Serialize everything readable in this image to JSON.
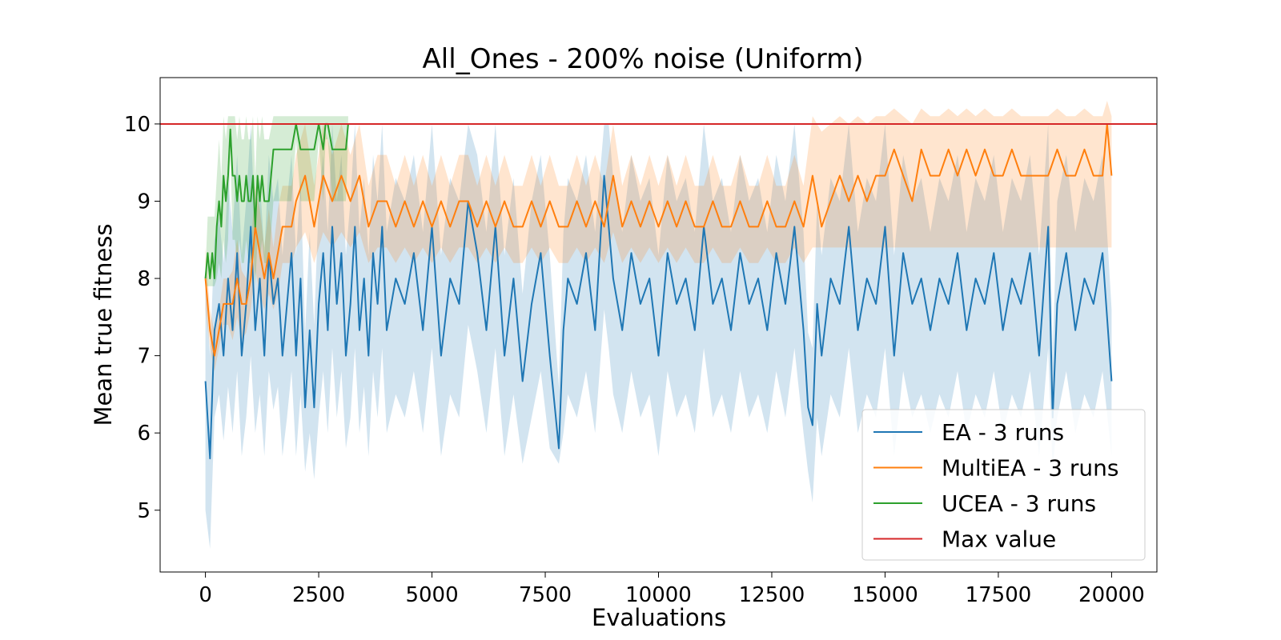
{
  "chart_data": {
    "type": "line",
    "title": "All_Ones - 200% noise (Uniform)",
    "xlabel": "Evaluations",
    "ylabel": "Mean true fitness",
    "xlim": [
      -1000,
      21000
    ],
    "ylim": [
      4.2,
      10.6
    ],
    "xticks": [
      0,
      2500,
      5000,
      7500,
      10000,
      12500,
      15000,
      17500,
      20000
    ],
    "yticks": [
      5,
      6,
      7,
      8,
      9,
      10
    ],
    "grid": false,
    "legend_position": "lower-right",
    "colors": {
      "ea": "#1f77b4",
      "multiea": "#ff7f0e",
      "ucea": "#2ca02c",
      "max": "#d62728"
    },
    "series": [
      {
        "name": "EA - 3 runs",
        "color": "#1f77b4",
        "x": [
          0,
          100,
          200,
          300,
          400,
          500,
          600,
          700,
          800,
          900,
          1000,
          1100,
          1200,
          1300,
          1400,
          1500,
          1600,
          1700,
          1800,
          1900,
          2000,
          2100,
          2200,
          2300,
          2400,
          2500,
          2600,
          2700,
          2800,
          2900,
          3000,
          3100,
          3200,
          3300,
          3400,
          3500,
          3600,
          3700,
          3800,
          3900,
          4000,
          4200,
          4400,
          4600,
          4800,
          5000,
          5200,
          5400,
          5600,
          5800,
          6000,
          6200,
          6400,
          6600,
          6800,
          7000,
          7200,
          7400,
          7600,
          7800,
          7900,
          8000,
          8200,
          8400,
          8600,
          8800,
          8900,
          9000,
          9200,
          9400,
          9600,
          9800,
          10000,
          10200,
          10400,
          10600,
          10800,
          11000,
          11200,
          11400,
          11600,
          11800,
          12000,
          12200,
          12400,
          12600,
          12800,
          13000,
          13200,
          13300,
          13400,
          13500,
          13600,
          13800,
          14000,
          14200,
          14400,
          14600,
          14800,
          15000,
          15200,
          15400,
          15600,
          15800,
          16000,
          16200,
          16400,
          16600,
          16800,
          17000,
          17200,
          17400,
          17600,
          17800,
          18000,
          18200,
          18400,
          18600,
          18700,
          18800,
          19000,
          19200,
          19400,
          19600,
          19800,
          20000
        ],
        "values": [
          6.67,
          5.67,
          7.33,
          7.67,
          7.0,
          8.0,
          7.33,
          8.33,
          7.0,
          7.67,
          8.67,
          7.33,
          8.0,
          7.0,
          8.33,
          7.67,
          8.0,
          7.0,
          7.67,
          8.33,
          7.0,
          8.0,
          6.33,
          7.33,
          6.33,
          7.67,
          8.33,
          7.33,
          8.67,
          7.67,
          8.33,
          7.0,
          7.67,
          8.67,
          7.33,
          8.0,
          7.0,
          8.33,
          7.67,
          8.67,
          7.33,
          8.0,
          7.67,
          8.33,
          7.33,
          8.67,
          7.0,
          8.0,
          7.67,
          9.0,
          8.33,
          7.33,
          8.67,
          7.0,
          8.0,
          6.67,
          7.67,
          8.33,
          7.0,
          5.8,
          7.33,
          8.0,
          7.67,
          8.33,
          7.33,
          9.33,
          8.67,
          8.0,
          7.33,
          8.33,
          7.67,
          8.0,
          7.0,
          8.33,
          7.67,
          8.0,
          7.33,
          8.67,
          7.67,
          8.0,
          7.33,
          8.33,
          7.67,
          8.0,
          7.33,
          8.33,
          7.67,
          8.67,
          7.33,
          6.33,
          6.1,
          7.67,
          7.0,
          8.0,
          7.67,
          8.67,
          7.33,
          8.0,
          7.67,
          8.67,
          7.0,
          8.33,
          7.67,
          8.0,
          7.33,
          8.0,
          7.67,
          8.33,
          7.33,
          8.0,
          7.67,
          8.33,
          7.33,
          8.0,
          7.67,
          8.33,
          7.0,
          8.67,
          6.2,
          7.67,
          8.33,
          7.33,
          8.0,
          7.67,
          8.33,
          6.67
        ],
        "band_lower": [
          5.0,
          4.5,
          6.2,
          6.5,
          5.9,
          6.6,
          6.0,
          6.8,
          5.7,
          6.2,
          7.0,
          6.0,
          6.5,
          5.7,
          6.8,
          6.3,
          6.6,
          5.7,
          6.2,
          6.8,
          5.7,
          6.5,
          5.5,
          6.0,
          5.4,
          6.2,
          6.8,
          6.0,
          7.1,
          6.2,
          6.8,
          5.8,
          6.2,
          7.1,
          6.0,
          6.6,
          5.7,
          6.8,
          6.2,
          7.1,
          6.0,
          6.5,
          6.2,
          6.8,
          6.0,
          7.1,
          5.7,
          6.5,
          6.2,
          7.4,
          6.8,
          6.0,
          7.1,
          5.7,
          6.5,
          5.6,
          6.2,
          6.8,
          5.8,
          5.6,
          6.0,
          6.5,
          6.2,
          6.8,
          6.0,
          7.6,
          7.1,
          6.5,
          6.0,
          6.8,
          6.2,
          6.5,
          5.7,
          6.8,
          6.2,
          6.5,
          6.0,
          7.1,
          6.2,
          6.5,
          6.0,
          6.8,
          6.2,
          6.5,
          6.0,
          6.8,
          6.2,
          7.1,
          6.0,
          5.5,
          5.1,
          6.2,
          5.7,
          6.5,
          6.2,
          7.1,
          6.0,
          6.5,
          6.2,
          7.1,
          5.7,
          6.8,
          6.2,
          6.5,
          6.0,
          6.5,
          6.2,
          6.8,
          6.0,
          6.5,
          6.2,
          6.8,
          6.0,
          6.5,
          6.2,
          6.8,
          5.7,
          7.1,
          5.5,
          6.2,
          6.8,
          6.0,
          6.5,
          6.2,
          6.8,
          5.7
        ],
        "band_upper": [
          8.0,
          7.0,
          8.5,
          8.8,
          8.2,
          9.3,
          8.6,
          9.6,
          8.3,
          9.0,
          10.0,
          8.6,
          9.3,
          8.3,
          9.6,
          9.0,
          9.3,
          8.3,
          9.0,
          9.6,
          8.3,
          9.3,
          7.3,
          8.6,
          7.4,
          9.0,
          9.6,
          8.6,
          10.0,
          9.0,
          9.6,
          8.3,
          9.0,
          10.0,
          8.6,
          9.3,
          8.3,
          9.6,
          9.0,
          10.0,
          8.6,
          9.3,
          9.0,
          9.6,
          8.6,
          10.0,
          8.3,
          9.3,
          9.0,
          10.0,
          9.6,
          8.6,
          10.0,
          8.3,
          9.3,
          7.8,
          9.0,
          9.6,
          8.3,
          6.6,
          8.6,
          9.3,
          9.0,
          9.6,
          8.6,
          10.0,
          10.0,
          9.3,
          8.6,
          9.6,
          9.0,
          9.3,
          8.3,
          9.6,
          9.0,
          9.3,
          8.6,
          10.0,
          9.0,
          9.3,
          8.6,
          9.6,
          9.0,
          9.3,
          8.6,
          9.6,
          9.0,
          10.0,
          8.6,
          7.3,
          7.1,
          9.0,
          8.3,
          9.3,
          9.0,
          10.0,
          8.6,
          9.3,
          9.0,
          10.0,
          8.3,
          9.6,
          9.0,
          9.3,
          8.6,
          9.3,
          9.0,
          9.6,
          8.6,
          9.3,
          9.0,
          9.6,
          8.6,
          9.3,
          9.0,
          9.6,
          8.3,
          10.0,
          7.0,
          9.0,
          9.6,
          8.6,
          9.3,
          9.0,
          9.6,
          7.6
        ]
      },
      {
        "name": "MultiEA - 3 runs",
        "color": "#ff7f0e",
        "x": [
          0,
          100,
          200,
          300,
          400,
          500,
          600,
          700,
          800,
          900,
          1000,
          1100,
          1200,
          1300,
          1400,
          1500,
          1600,
          1700,
          1800,
          1900,
          2000,
          2200,
          2400,
          2600,
          2800,
          3000,
          3200,
          3400,
          3600,
          3800,
          4000,
          4200,
          4400,
          4600,
          4800,
          5000,
          5200,
          5400,
          5600,
          5800,
          6000,
          6200,
          6400,
          6600,
          6800,
          7000,
          7200,
          7400,
          7600,
          7800,
          8000,
          8200,
          8400,
          8600,
          8800,
          9000,
          9200,
          9400,
          9600,
          9800,
          10000,
          10200,
          10400,
          10600,
          10800,
          11000,
          11200,
          11400,
          11600,
          11800,
          12000,
          12200,
          12400,
          12600,
          12800,
          13000,
          13200,
          13400,
          13600,
          13800,
          14000,
          14200,
          14400,
          14600,
          14800,
          15000,
          15200,
          15400,
          15600,
          15800,
          16000,
          16200,
          16400,
          16600,
          16800,
          17000,
          17200,
          17400,
          17600,
          17800,
          18000,
          18200,
          18400,
          18600,
          18800,
          19000,
          19200,
          19400,
          19600,
          19800,
          19900,
          20000
        ],
        "values": [
          8.0,
          7.33,
          7.0,
          7.33,
          7.67,
          7.67,
          7.67,
          8.0,
          7.67,
          7.67,
          8.0,
          8.67,
          8.33,
          8.0,
          8.33,
          8.0,
          8.33,
          8.67,
          8.67,
          8.67,
          9.0,
          9.33,
          8.67,
          9.33,
          9.0,
          9.33,
          9.0,
          9.33,
          8.67,
          9.0,
          9.0,
          8.67,
          9.0,
          8.67,
          9.0,
          8.67,
          9.0,
          8.67,
          9.0,
          9.0,
          8.67,
          9.0,
          8.67,
          9.0,
          8.67,
          8.67,
          9.0,
          8.67,
          9.0,
          8.67,
          8.67,
          9.0,
          8.67,
          9.0,
          8.67,
          9.33,
          8.67,
          9.0,
          8.67,
          9.0,
          8.67,
          9.0,
          8.67,
          9.0,
          8.67,
          8.67,
          9.0,
          8.67,
          8.67,
          9.0,
          8.67,
          8.67,
          9.0,
          8.67,
          8.67,
          9.0,
          8.67,
          9.33,
          8.67,
          9.0,
          9.33,
          9.0,
          9.33,
          9.0,
          9.33,
          9.33,
          9.67,
          9.33,
          9.0,
          9.67,
          9.33,
          9.33,
          9.67,
          9.33,
          9.67,
          9.33,
          9.67,
          9.33,
          9.33,
          9.67,
          9.33,
          9.33,
          9.33,
          9.33,
          9.67,
          9.33,
          9.33,
          9.67,
          9.33,
          9.33,
          10.0,
          9.33
        ],
        "band_lower": [
          7.6,
          7.1,
          6.8,
          7.1,
          7.4,
          7.4,
          7.2,
          7.5,
          7.2,
          7.3,
          7.6,
          8.1,
          7.8,
          7.6,
          7.8,
          7.6,
          7.8,
          8.2,
          8.2,
          8.2,
          8.4,
          8.6,
          8.2,
          8.6,
          8.4,
          8.6,
          8.4,
          8.6,
          8.2,
          8.4,
          8.4,
          8.2,
          8.4,
          8.2,
          8.4,
          8.2,
          8.4,
          8.2,
          8.4,
          8.4,
          8.2,
          8.4,
          8.2,
          8.4,
          8.2,
          8.2,
          8.4,
          8.2,
          8.4,
          8.2,
          8.2,
          8.4,
          8.2,
          8.4,
          8.2,
          8.6,
          8.2,
          8.4,
          8.2,
          8.4,
          8.2,
          8.4,
          8.2,
          8.4,
          8.2,
          8.2,
          8.4,
          8.2,
          8.2,
          8.4,
          8.2,
          8.2,
          8.4,
          8.2,
          8.2,
          8.4,
          8.2,
          8.4,
          8.4,
          8.4,
          8.4,
          8.4,
          8.4,
          8.4,
          8.4,
          8.4,
          8.4,
          8.4,
          8.4,
          8.4,
          8.4,
          8.4,
          8.4,
          8.4,
          8.4,
          8.4,
          8.4,
          8.4,
          8.4,
          8.4,
          8.4,
          8.4,
          8.4,
          8.4,
          8.4,
          8.4,
          8.4,
          8.4,
          8.4,
          8.4,
          8.4,
          8.4
        ],
        "band_upper": [
          8.4,
          7.6,
          7.3,
          7.6,
          8.0,
          8.0,
          8.1,
          8.5,
          8.1,
          8.0,
          8.4,
          9.2,
          8.9,
          8.4,
          8.9,
          8.4,
          8.9,
          9.2,
          9.2,
          9.2,
          9.6,
          10.0,
          9.2,
          10.0,
          9.6,
          10.0,
          9.6,
          10.0,
          9.2,
          9.6,
          9.6,
          9.2,
          9.6,
          9.2,
          9.6,
          9.2,
          9.6,
          9.2,
          9.6,
          9.6,
          9.2,
          9.6,
          9.2,
          9.6,
          9.2,
          9.2,
          9.6,
          9.2,
          9.6,
          9.2,
          9.2,
          9.6,
          9.2,
          9.6,
          9.2,
          10.0,
          9.2,
          9.6,
          9.2,
          9.6,
          9.2,
          9.6,
          9.2,
          9.6,
          9.2,
          9.2,
          9.6,
          9.2,
          9.2,
          9.6,
          9.2,
          9.2,
          9.6,
          9.2,
          9.2,
          9.6,
          9.2,
          10.1,
          9.9,
          10.0,
          10.1,
          10.0,
          10.1,
          10.0,
          10.1,
          10.1,
          10.2,
          10.1,
          10.0,
          10.2,
          10.1,
          10.1,
          10.2,
          10.1,
          10.2,
          10.1,
          10.2,
          10.1,
          10.1,
          10.2,
          10.1,
          10.1,
          10.1,
          10.1,
          10.2,
          10.1,
          10.1,
          10.2,
          10.1,
          10.1,
          10.3,
          10.1
        ]
      },
      {
        "name": "UCEA - 3 runs",
        "color": "#2ca02c",
        "x": [
          0,
          50,
          100,
          150,
          200,
          250,
          300,
          350,
          400,
          450,
          500,
          550,
          600,
          650,
          700,
          750,
          800,
          850,
          900,
          950,
          1000,
          1050,
          1100,
          1150,
          1200,
          1250,
          1300,
          1350,
          1400,
          1500,
          1600,
          1700,
          1800,
          1900,
          2000,
          2100,
          2200,
          2300,
          2400,
          2500,
          2600,
          2650,
          2700,
          2800,
          2900,
          3000,
          3100,
          3150
        ],
        "values": [
          8.0,
          8.33,
          8.0,
          8.33,
          8.0,
          8.67,
          9.0,
          8.67,
          9.33,
          9.0,
          9.33,
          9.93,
          9.33,
          9.33,
          9.0,
          9.33,
          9.0,
          9.0,
          9.33,
          9.0,
          9.0,
          9.33,
          8.67,
          9.33,
          9.0,
          9.33,
          9.0,
          9.0,
          9.0,
          9.67,
          9.67,
          9.67,
          9.67,
          9.67,
          10.0,
          9.67,
          9.67,
          9.67,
          9.67,
          10.0,
          9.67,
          10.0,
          10.0,
          9.67,
          9.67,
          9.67,
          9.67,
          10.0
        ],
        "band_lower": [
          7.9,
          7.9,
          7.9,
          7.9,
          7.9,
          8.0,
          8.2,
          8.0,
          8.5,
          8.2,
          8.5,
          9.7,
          8.5,
          8.5,
          8.2,
          8.5,
          8.2,
          8.2,
          8.5,
          8.2,
          8.2,
          8.5,
          7.9,
          8.5,
          8.2,
          8.5,
          8.2,
          8.2,
          8.2,
          9.0,
          9.0,
          9.0,
          9.0,
          9.0,
          9.8,
          9.0,
          9.0,
          9.0,
          9.0,
          9.8,
          9.0,
          9.8,
          9.8,
          9.0,
          9.0,
          9.0,
          9.0,
          9.8
        ],
        "band_upper": [
          8.1,
          8.8,
          8.8,
          8.8,
          8.8,
          9.3,
          9.8,
          9.3,
          10.1,
          9.8,
          10.1,
          10.1,
          10.1,
          10.1,
          9.8,
          10.1,
          9.8,
          9.8,
          10.1,
          9.8,
          9.8,
          10.1,
          9.3,
          10.1,
          9.8,
          10.1,
          9.8,
          9.8,
          9.8,
          10.1,
          10.1,
          10.1,
          10.1,
          10.1,
          10.1,
          10.1,
          10.1,
          10.1,
          10.1,
          10.1,
          10.1,
          10.1,
          10.1,
          10.1,
          10.1,
          10.1,
          10.1,
          10.1
        ]
      }
    ],
    "hline": {
      "name": "Max value",
      "y": 10,
      "color": "#d62728"
    },
    "legend": [
      "EA - 3 runs",
      "MultiEA - 3 runs",
      "UCEA - 3 runs",
      "Max value"
    ]
  }
}
